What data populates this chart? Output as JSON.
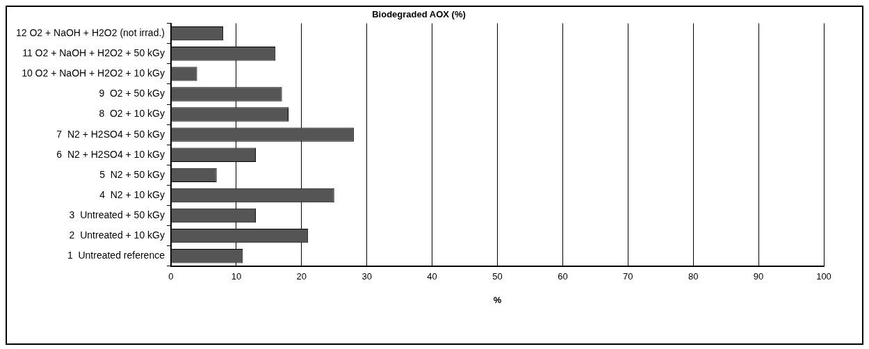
{
  "chart_data": {
    "type": "bar",
    "orientation": "horizontal",
    "title": "Biodegraded AOX (%)",
    "xlabel": "%",
    "categories": [
      "12 O2 + NaOH + H2O2 (not irrad.)",
      "11 O2 + NaOH + H2O2 + 50 kGy",
      "10 O2 + NaOH + H2O2 + 10 kGy",
      "9  O2 + 50 kGy",
      "8  O2 + 10 kGy",
      "7  N2 + H2SO4 + 50 kGy",
      "6  N2 + H2SO4 + 10 kGy",
      "5  N2 + 50 kGy",
      "4  N2 + 10 kGy",
      "3  Untreated + 50 kGy",
      "2  Untreated + 10 kGy",
      "1  Untreated reference"
    ],
    "values": [
      8,
      16,
      4,
      17,
      18,
      28,
      13,
      7,
      25,
      13,
      21,
      11
    ],
    "color": "#555555",
    "xlim": [
      0,
      100
    ],
    "xticks": [
      0,
      10,
      20,
      30,
      40,
      50,
      60,
      70,
      80,
      90,
      100
    ],
    "grid": "x",
    "legend": false
  }
}
